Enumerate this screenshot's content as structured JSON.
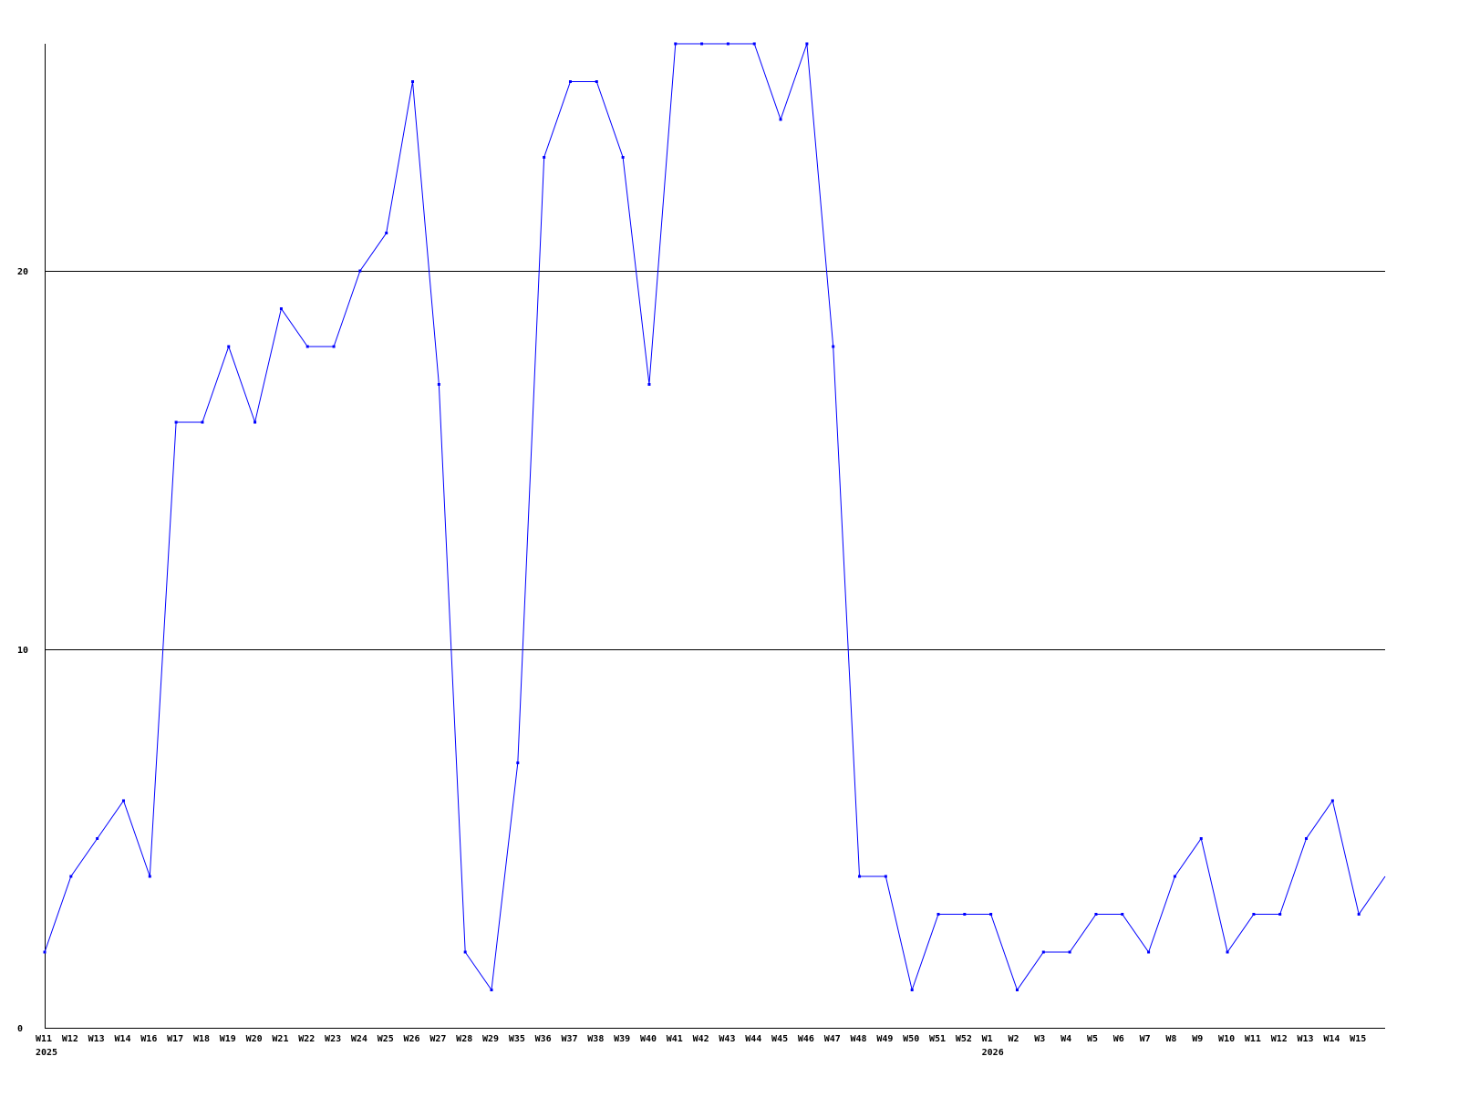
{
  "chart_data": {
    "type": "line",
    "title": "",
    "xlabel": "",
    "ylabel": "",
    "ylim": [
      0,
      26
    ],
    "yticks": [
      0,
      10,
      20
    ],
    "grid": "horizontal at y ticks",
    "categories": [
      "W11",
      "W12",
      "W13",
      "W14",
      "W16",
      "W17",
      "W18",
      "W19",
      "W20",
      "W21",
      "W22",
      "W23",
      "W24",
      "W25",
      "W26",
      "W27",
      "W28",
      "W29",
      "W35",
      "W36",
      "W37",
      "W38",
      "W39",
      "W40",
      "W41",
      "W42",
      "W43",
      "W44",
      "W45",
      "W46",
      "W47",
      "W48",
      "W49",
      "W50",
      "W51",
      "W52",
      "W1",
      "W2",
      "W3",
      "W4",
      "W5",
      "W6",
      "W7",
      "W8",
      "W9",
      "W10",
      "W11",
      "W12",
      "W13",
      "W14",
      "W15",
      ""
    ],
    "year_labels": [
      {
        "index": 0,
        "label": "2025"
      },
      {
        "index": 36,
        "label": "2026"
      }
    ],
    "series": [
      {
        "values": [
          2,
          4,
          5,
          6,
          4,
          16,
          16,
          18,
          16,
          19,
          18,
          18,
          20,
          21,
          25,
          17,
          2,
          1,
          7,
          23,
          25,
          25,
          23,
          17,
          26,
          26,
          26,
          26,
          24,
          26,
          18,
          4,
          4,
          1,
          3,
          3,
          3,
          1,
          2,
          2,
          3,
          3,
          2,
          4,
          5,
          2,
          3,
          3,
          5,
          6,
          3,
          4
        ],
        "color": "#0000ff"
      }
    ],
    "axis_color": "#000000"
  }
}
